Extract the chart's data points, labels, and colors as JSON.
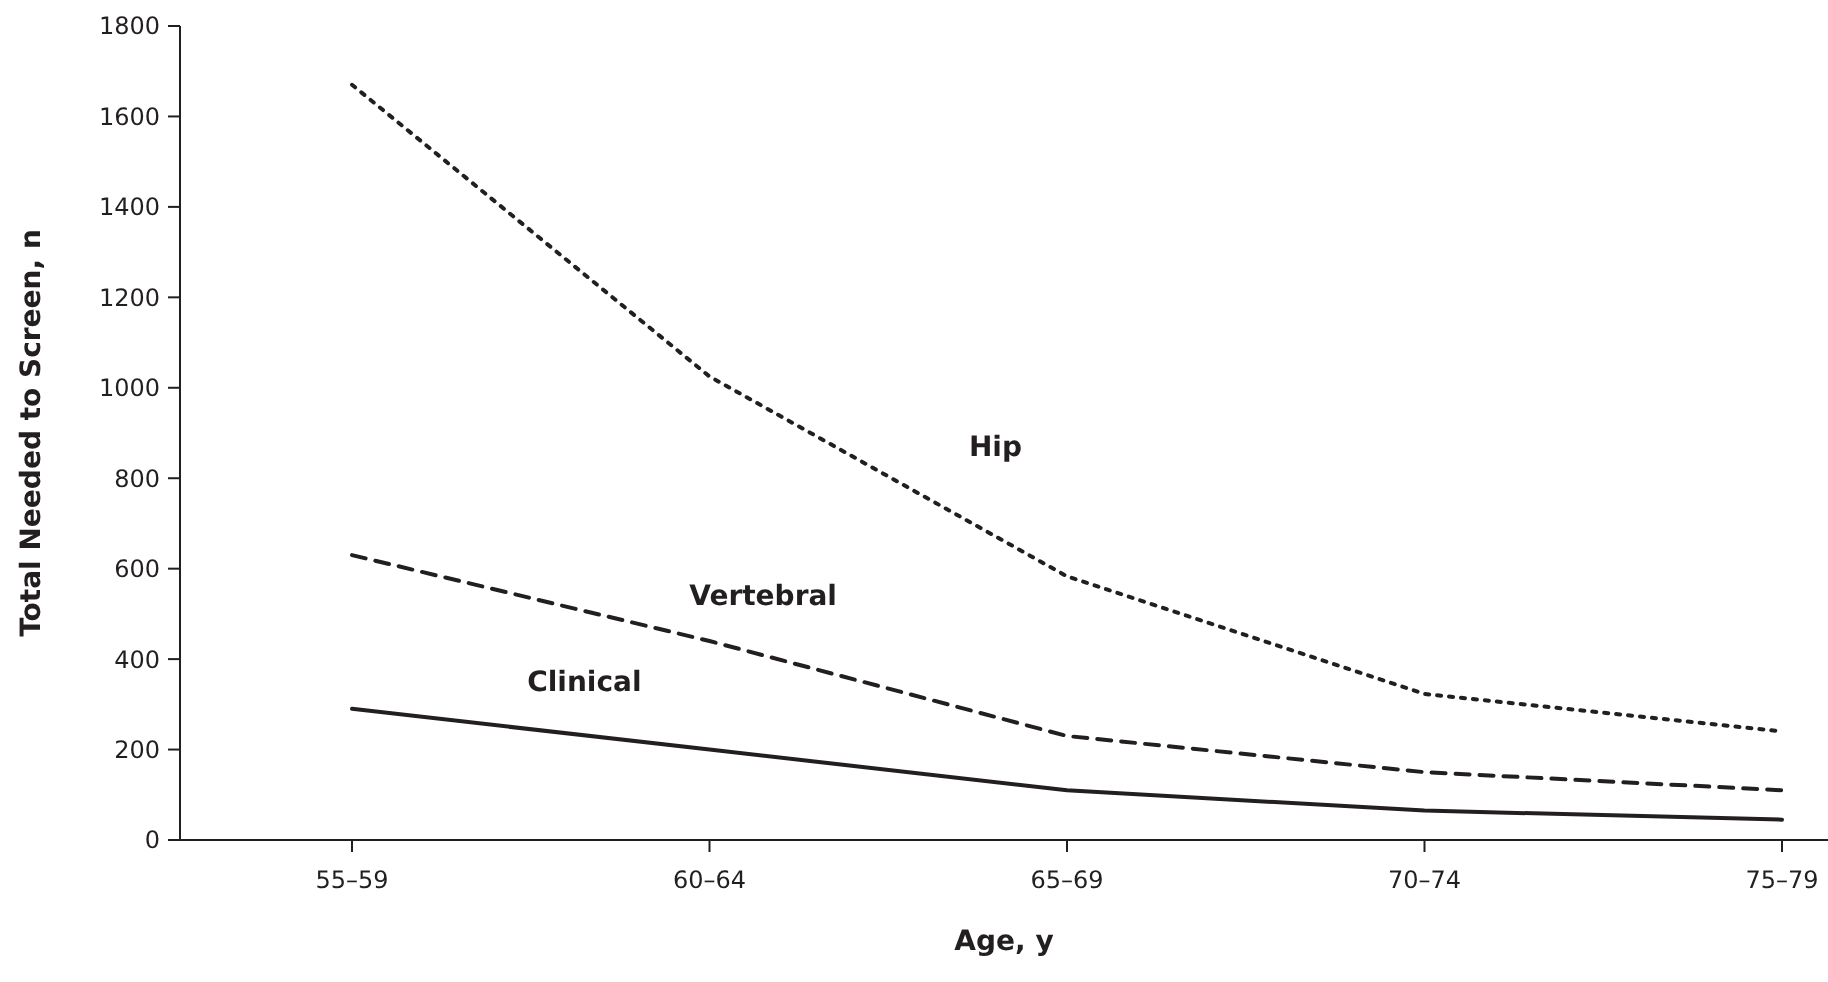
{
  "chart_data": {
    "type": "line",
    "xlabel": "Age, y",
    "ylabel": "Total Needed to Screen, n",
    "categories": [
      "55–59",
      "60–64",
      "65–69",
      "70–74",
      "75–79"
    ],
    "series": [
      {
        "name": "Hip",
        "color": "#231f20",
        "line_style": "dotted",
        "values": [
          1670,
          1025,
          583,
          323,
          240
        ]
      },
      {
        "name": "Vertebral",
        "color": "#231f20",
        "line_style": "dashed",
        "values": [
          630,
          440,
          230,
          150,
          110
        ]
      },
      {
        "name": "Clinical",
        "color": "#231f20",
        "line_style": "solid",
        "values": [
          290,
          200,
          110,
          65,
          45
        ]
      }
    ],
    "ylim": [
      0,
      1800
    ],
    "yticks": [
      0,
      200,
      400,
      600,
      800,
      1000,
      1200,
      1400,
      1600,
      1800
    ],
    "grid": false,
    "marker": "none"
  }
}
